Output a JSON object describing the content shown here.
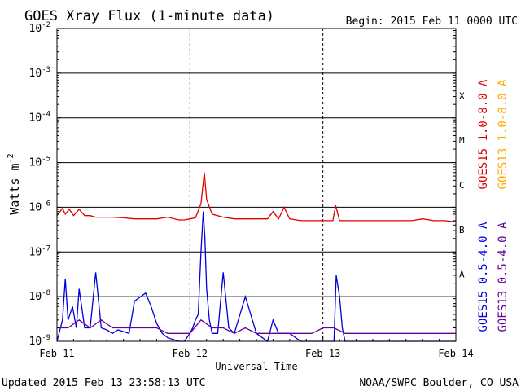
{
  "chart_data": {
    "type": "line",
    "title": "GOES Xray Flux (1-minute data)",
    "begin_label": "Begin:  2015 Feb 11 0000 UTC",
    "xlabel": "Universal Time",
    "ylabel": "Watts m",
    "ylabel_superscript": "-2",
    "y_scale": "log",
    "ylim": [
      1e-09,
      0.01
    ],
    "y_ticks": [
      {
        "base": "10",
        "exp": "-2",
        "value": 0.01
      },
      {
        "base": "10",
        "exp": "-3",
        "value": 0.001
      },
      {
        "base": "10",
        "exp": "-4",
        "value": 0.0001
      },
      {
        "base": "10",
        "exp": "-5",
        "value": 1e-05
      },
      {
        "base": "10",
        "exp": "-6",
        "value": 1e-06
      },
      {
        "base": "10",
        "exp": "-7",
        "value": 1e-07
      },
      {
        "base": "10",
        "exp": "-8",
        "value": 1e-08
      },
      {
        "base": "10",
        "exp": "-9",
        "value": 1e-09
      }
    ],
    "xlim_hours": [
      0,
      72
    ],
    "x_ticks": [
      {
        "label": "Feb 11",
        "hour": 0
      },
      {
        "label": "Feb 12",
        "hour": 24
      },
      {
        "label": "Feb 13",
        "hour": 48
      },
      {
        "label": "Feb 14",
        "hour": 72
      }
    ],
    "flare_classes": [
      {
        "label": "A",
        "value": 3.16e-08
      },
      {
        "label": "B",
        "value": 3.16e-07
      },
      {
        "label": "C",
        "value": 3.16e-06
      },
      {
        "label": "M",
        "value": 3.16e-05
      },
      {
        "label": "X",
        "value": 0.000316
      }
    ],
    "grid": true,
    "legend_placement": "right",
    "series": [
      {
        "name": "GOES15 1.0-8.0 A",
        "color": "#dd0000",
        "x": [
          0,
          1,
          1.5,
          2.2,
          3,
          4,
          5,
          6,
          7,
          8,
          10,
          12,
          14,
          16,
          18,
          20,
          22,
          23,
          24,
          25,
          26,
          26.6,
          27,
          28,
          30,
          32,
          34,
          36,
          38,
          39,
          40,
          41,
          42,
          44,
          46,
          48,
          49,
          49.8,
          50.3,
          51,
          52,
          54,
          56,
          58,
          60,
          62,
          64,
          66,
          68,
          70,
          72
        ],
        "y": [
          6.5e-07,
          9.5e-07,
          7e-07,
          9e-07,
          6.5e-07,
          9e-07,
          6.5e-07,
          6.5e-07,
          6e-07,
          6e-07,
          6e-07,
          5.8e-07,
          5.5e-07,
          5.5e-07,
          5.5e-07,
          6e-07,
          5.2e-07,
          5.2e-07,
          5.5e-07,
          5.8e-07,
          1.2e-06,
          6e-06,
          1.5e-06,
          7e-07,
          6e-07,
          5.5e-07,
          5.5e-07,
          5.5e-07,
          5.5e-07,
          8e-07,
          5.5e-07,
          1e-06,
          5.5e-07,
          5e-07,
          5e-07,
          5e-07,
          5e-07,
          5e-07,
          1.1e-06,
          5e-07,
          5e-07,
          5e-07,
          5e-07,
          5e-07,
          5e-07,
          5e-07,
          5e-07,
          5.5e-07,
          5e-07,
          5e-07,
          4.7e-07
        ]
      },
      {
        "name": "GOES13 1.0-8.0 A",
        "color": "#ffaa00",
        "x": [],
        "y": []
      },
      {
        "name": "GOES15 0.5-4.0 A",
        "color": "#0000dd",
        "x": [
          0,
          1,
          1.5,
          2,
          2.8,
          3.5,
          4,
          5,
          6,
          7,
          8,
          9,
          10,
          11,
          13,
          14,
          16,
          17,
          18,
          19,
          20,
          22,
          23,
          24,
          24.5,
          25,
          25.5,
          26,
          26.4,
          26.7,
          27,
          27.5,
          28,
          29,
          30,
          31,
          32,
          34,
          36,
          38,
          39,
          40,
          42,
          44,
          46,
          48,
          49,
          50,
          50.4,
          51,
          51.5,
          52,
          54,
          56,
          58,
          60,
          62,
          64,
          66,
          68,
          70,
          72
        ],
        "y": [
          1e-09,
          3e-09,
          2.5e-08,
          3e-09,
          6e-09,
          2e-09,
          1.5e-08,
          2e-09,
          2e-09,
          3.5e-08,
          2e-09,
          1.8e-09,
          1.5e-09,
          1.8e-09,
          1.5e-09,
          8e-09,
          1.2e-08,
          6e-09,
          2.5e-09,
          1.5e-09,
          1.2e-09,
          1e-09,
          1e-09,
          1.5e-09,
          2e-09,
          3e-09,
          4e-09,
          1e-07,
          8e-07,
          2e-07,
          1.5e-08,
          3e-09,
          1.5e-09,
          1.5e-09,
          3.5e-08,
          2e-09,
          1.5e-09,
          1e-08,
          1.5e-09,
          1e-09,
          3e-09,
          1.5e-09,
          1.5e-09,
          1e-09,
          1e-09,
          1e-09,
          1e-09,
          1e-09,
          3e-08,
          1e-08,
          2e-09,
          1e-09,
          1e-09,
          1e-09,
          1e-09,
          1e-09,
          1e-09,
          1e-09,
          1e-09,
          1e-09,
          1e-09,
          1e-09
        ]
      },
      {
        "name": "GOES13 0.5-4.0 A",
        "color": "#660099",
        "x": [
          0,
          2,
          4,
          6,
          8,
          10,
          12,
          14,
          16,
          18,
          20,
          22,
          24,
          26,
          28,
          30,
          32,
          34,
          36,
          38,
          40,
          42,
          44,
          46,
          48,
          50,
          52,
          54,
          56,
          58,
          60,
          62,
          64,
          66,
          68,
          70,
          72
        ],
        "y": [
          2e-09,
          2e-09,
          3e-09,
          2e-09,
          3e-09,
          2e-09,
          2e-09,
          2e-09,
          2e-09,
          2e-09,
          1.5e-09,
          1.5e-09,
          1.5e-09,
          3e-09,
          2e-09,
          2e-09,
          1.5e-09,
          2e-09,
          1.5e-09,
          1.5e-09,
          1.5e-09,
          1.5e-09,
          1.5e-09,
          1.5e-09,
          2e-09,
          2e-09,
          1.5e-09,
          1.5e-09,
          1.5e-09,
          1.5e-09,
          1.5e-09,
          1.5e-09,
          1.5e-09,
          1.5e-09,
          1.5e-09,
          1.5e-09,
          1.5e-09
        ]
      }
    ]
  },
  "footer": {
    "updated": "Updated 2015 Feb 13 23:58:13 UTC",
    "credit": "NOAA/SWPC Boulder, CO USA"
  }
}
